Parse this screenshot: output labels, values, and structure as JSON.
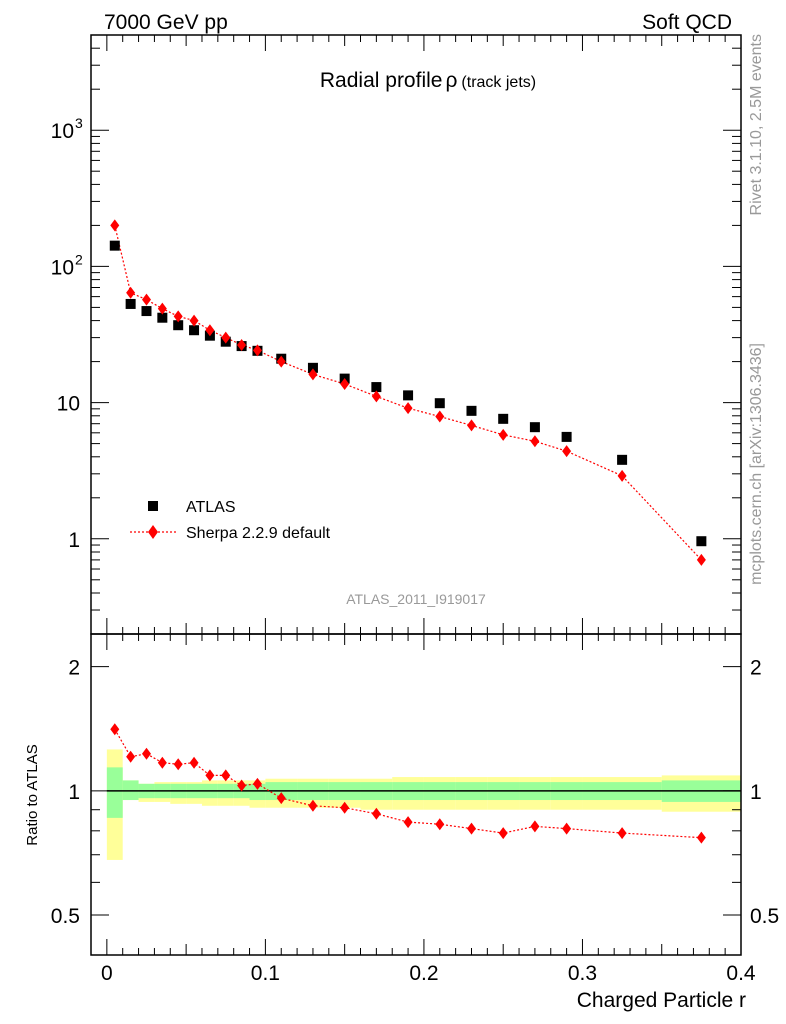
{
  "header": {
    "left_label": "7000 GeV pp",
    "right_label": "Soft QCD"
  },
  "side_text": {
    "rivet": "Rivet 3.1.10,  2.5M events",
    "source": "mcplots.cern.ch [arXiv:1306.3436]"
  },
  "chart_data": [
    {
      "type": "scatter",
      "panel": "main",
      "title": "Radial profile",
      "title_symbol": "ρ",
      "title_suffix": "(track jets)",
      "analysis_label": "ATLAS_2011_I919017",
      "xlabel": "Charged Particle r",
      "ylabel": "",
      "xlim": [
        -0.01,
        0.4
      ],
      "ylim": [
        0.2,
        5000
      ],
      "yscale": "log",
      "legend_position": "bottom-left",
      "x_ticks": [
        "0",
        "0.1",
        "0.2",
        "0.3",
        "0.4"
      ],
      "y_ticks": [
        {
          "value": 1,
          "label": "1"
        },
        {
          "value": 10,
          "label": "10"
        },
        {
          "value": 100,
          "label": "10",
          "exp": "2"
        },
        {
          "value": 1000,
          "label": "10",
          "exp": "3"
        }
      ],
      "series": [
        {
          "name": "ATLAS",
          "marker": "square",
          "color": "#000000",
          "x": [
            0.005,
            0.015,
            0.025,
            0.035,
            0.045,
            0.055,
            0.065,
            0.075,
            0.085,
            0.095,
            0.11,
            0.13,
            0.15,
            0.17,
            0.19,
            0.21,
            0.23,
            0.25,
            0.27,
            0.29,
            0.325,
            0.375
          ],
          "y": [
            142,
            53,
            47,
            42,
            37,
            34,
            31,
            28,
            26,
            24,
            21,
            18,
            15,
            13,
            11.3,
            9.9,
            8.7,
            7.6,
            6.6,
            5.6,
            3.8,
            0.96
          ]
        },
        {
          "name": "Sherpa 2.2.9 default",
          "marker": "diamond",
          "line": "dotted",
          "color": "#ff0000",
          "x": [
            0.005,
            0.015,
            0.025,
            0.035,
            0.045,
            0.055,
            0.065,
            0.075,
            0.085,
            0.095,
            0.11,
            0.13,
            0.15,
            0.17,
            0.19,
            0.21,
            0.23,
            0.25,
            0.27,
            0.29,
            0.325,
            0.375
          ],
          "y": [
            200,
            64,
            57,
            49,
            43,
            40,
            34,
            30,
            26.5,
            24.2,
            20,
            16.1,
            13.7,
            11.1,
            9.1,
            7.9,
            6.8,
            5.8,
            5.2,
            4.4,
            2.9,
            0.7
          ]
        }
      ]
    },
    {
      "type": "scatter",
      "panel": "ratio",
      "xlabel": "Charged Particle r",
      "ylabel": "Ratio to ATLAS",
      "xlim": [
        -0.01,
        0.4
      ],
      "ylim": [
        0.4,
        2.4
      ],
      "yscale": "log",
      "y_ticks": [
        {
          "value": 0.5,
          "label": "0.5"
        },
        {
          "value": 1,
          "label": "1"
        },
        {
          "value": 2,
          "label": "2"
        }
      ],
      "bands": {
        "stat_color": "#99ff99",
        "syst_color": "#ffff99",
        "bin_edges": [
          0,
          0.01,
          0.02,
          0.03,
          0.04,
          0.05,
          0.06,
          0.07,
          0.08,
          0.09,
          0.1,
          0.12,
          0.14,
          0.16,
          0.18,
          0.2,
          0.22,
          0.24,
          0.26,
          0.28,
          0.3,
          0.35,
          0.4
        ],
        "stat_low": [
          0.86,
          0.95,
          0.96,
          0.96,
          0.96,
          0.96,
          0.96,
          0.96,
          0.96,
          0.95,
          0.95,
          0.95,
          0.95,
          0.95,
          0.95,
          0.95,
          0.95,
          0.95,
          0.95,
          0.95,
          0.95,
          0.94
        ],
        "stat_high": [
          1.14,
          1.06,
          1.04,
          1.04,
          1.04,
          1.04,
          1.04,
          1.04,
          1.04,
          1.04,
          1.05,
          1.05,
          1.05,
          1.05,
          1.05,
          1.05,
          1.05,
          1.05,
          1.05,
          1.05,
          1.05,
          1.06
        ],
        "syst_low": [
          0.68,
          0.95,
          0.94,
          0.94,
          0.93,
          0.93,
          0.92,
          0.92,
          0.92,
          0.91,
          0.91,
          0.91,
          0.91,
          0.9,
          0.9,
          0.9,
          0.9,
          0.9,
          0.9,
          0.9,
          0.9,
          0.89
        ],
        "syst_high": [
          1.26,
          1.06,
          1.04,
          1.05,
          1.05,
          1.05,
          1.06,
          1.06,
          1.06,
          1.06,
          1.07,
          1.07,
          1.07,
          1.07,
          1.08,
          1.08,
          1.08,
          1.08,
          1.08,
          1.08,
          1.08,
          1.09
        ]
      },
      "series": [
        {
          "name": "Sherpa 2.2.9 default",
          "marker": "diamond",
          "line": "dotted",
          "color": "#ff0000",
          "x": [
            0.005,
            0.015,
            0.025,
            0.035,
            0.045,
            0.055,
            0.065,
            0.075,
            0.085,
            0.095,
            0.11,
            0.13,
            0.15,
            0.17,
            0.19,
            0.21,
            0.23,
            0.25,
            0.27,
            0.29,
            0.325,
            0.375
          ],
          "y": [
            1.41,
            1.21,
            1.23,
            1.17,
            1.16,
            1.17,
            1.09,
            1.09,
            1.03,
            1.04,
            0.96,
            0.92,
            0.91,
            0.88,
            0.84,
            0.83,
            0.81,
            0.79,
            0.82,
            0.81,
            0.79,
            0.77
          ]
        }
      ]
    }
  ]
}
